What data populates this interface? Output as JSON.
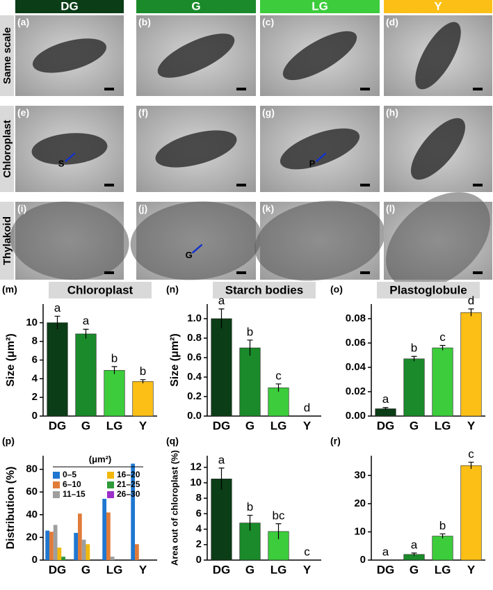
{
  "header": {
    "columns": [
      {
        "label": "DG",
        "color": "#0b3d17"
      },
      {
        "label": "G",
        "color": "#1a8a2a"
      },
      {
        "label": "LG",
        "color": "#3ccc3c"
      },
      {
        "label": "Y",
        "color": "#fbbf16"
      }
    ]
  },
  "rows": [
    "Same scale",
    "Chloroplast",
    "Thylakoid"
  ],
  "micrographs": [
    {
      "panel": "(a)"
    },
    {
      "panel": "(b)"
    },
    {
      "panel": "(c)"
    },
    {
      "panel": "(d)"
    },
    {
      "panel": "(e)",
      "arrow": "S"
    },
    {
      "panel": "(f)"
    },
    {
      "panel": "(g)",
      "arrow": "P"
    },
    {
      "panel": "(h)"
    },
    {
      "panel": "(i)"
    },
    {
      "panel": "(j)",
      "arrow": "G"
    },
    {
      "panel": "(k)"
    },
    {
      "panel": "(l)"
    }
  ],
  "chart_data": [
    {
      "type": "bar",
      "panel": "(m)",
      "title": "Chloroplast",
      "ylabel": "Size (μm²)",
      "categories": [
        "DG",
        "G",
        "LG",
        "Y"
      ],
      "values": [
        10.0,
        8.8,
        4.9,
        3.7
      ],
      "errors": [
        0.7,
        0.5,
        0.4,
        0.2
      ],
      "letters": [
        "a",
        "a",
        "b",
        "b"
      ],
      "colors": [
        "#0b3d17",
        "#1a8a2a",
        "#3ccc3c",
        "#fbbf16"
      ],
      "ylim": [
        0,
        12
      ],
      "yticks": [
        0,
        2,
        4,
        6,
        8,
        10
      ]
    },
    {
      "type": "bar",
      "panel": "(n)",
      "title": "Starch bodies",
      "ylabel": "Size (μm²)",
      "categories": [
        "DG",
        "G",
        "LG",
        "Y"
      ],
      "values": [
        1.0,
        0.7,
        0.29,
        0
      ],
      "errors": [
        0.1,
        0.08,
        0.04,
        0
      ],
      "letters": [
        "a",
        "b",
        "c",
        "d"
      ],
      "colors": [
        "#0b3d17",
        "#1a8a2a",
        "#3ccc3c",
        "#fbbf16"
      ],
      "ylim": [
        0,
        1.15
      ],
      "yticks": [
        {
          "value": 0,
          "label": "0.0"
        },
        0.2,
        0.4,
        0.6,
        0.8,
        {
          "value": 1,
          "label": "1.0"
        }
      ]
    },
    {
      "type": "bar",
      "panel": "(o)",
      "title": "Plastoglobule",
      "categories": [
        "DG",
        "G",
        "LG",
        "Y"
      ],
      "values": [
        0.006,
        0.047,
        0.056,
        0.085
      ],
      "errors": [
        0.001,
        0.002,
        0.002,
        0.003
      ],
      "letters": [
        "a",
        "b",
        "c",
        "d"
      ],
      "colors": [
        "#0b3d17",
        "#1a8a2a",
        "#3ccc3c",
        "#fbbf16"
      ],
      "ylim": [
        0,
        0.092
      ],
      "yticks": [
        {
          "value": 0,
          "label": "0.00"
        },
        {
          "value": 0.02,
          "label": "0.02"
        },
        {
          "value": 0.04,
          "label": "0.04"
        },
        {
          "value": 0.06,
          "label": "0.06"
        },
        {
          "value": 0.08,
          "label": "0.08"
        }
      ]
    },
    {
      "type": "grouped_bar",
      "panel": "(p)",
      "ylabel": "Distribution (%)",
      "legend_title": "(μm²)",
      "categories": [
        "DG",
        "G",
        "LG",
        "Y"
      ],
      "series": [
        {
          "name": "0–5",
          "color": "#1f77d0",
          "values": [
            26,
            24,
            54,
            85
          ]
        },
        {
          "name": "6–10",
          "color": "#e07b39",
          "values": [
            25,
            41,
            42,
            14
          ]
        },
        {
          "name": "11–15",
          "color": "#9e9e9e",
          "values": [
            31,
            18,
            3,
            0
          ]
        },
        {
          "name": "16–20",
          "color": "#f2b90c",
          "values": [
            11,
            14,
            0,
            0
          ]
        },
        {
          "name": "21–25",
          "color": "#2e9a3a",
          "values": [
            3,
            0,
            0,
            0
          ]
        },
        {
          "name": "26–30",
          "color": "#9b2fc9",
          "values": [
            0,
            0,
            0,
            0
          ]
        }
      ],
      "ylim": [
        0,
        92
      ],
      "yticks": [
        0,
        20,
        40,
        60,
        80
      ]
    },
    {
      "type": "bar",
      "panel": "(q)",
      "ylabel": "Area out of chloroplast (%)",
      "categories": [
        "DG",
        "G",
        "LG",
        "Y"
      ],
      "values": [
        10.5,
        4.8,
        3.7,
        0
      ],
      "errors": [
        1.4,
        1.0,
        1.0,
        0
      ],
      "letters": [
        "a",
        "b",
        "bc",
        "c"
      ],
      "colors": [
        "#0b3d17",
        "#1a8a2a",
        "#3ccc3c",
        "#fbbf16"
      ],
      "ylim": [
        0,
        13.5
      ],
      "yticks": [
        0,
        2,
        4,
        6,
        8,
        10,
        12
      ]
    },
    {
      "type": "bar",
      "panel": "(r)",
      "categories": [
        "DG",
        "G",
        "LG",
        "Y"
      ],
      "values": [
        0,
        2.0,
        8.5,
        33.5
      ],
      "errors": [
        0,
        0.5,
        0.8,
        1.2
      ],
      "letters": [
        "a",
        "a",
        "b",
        "c"
      ],
      "colors": [
        "#0b3d17",
        "#1a8a2a",
        "#3ccc3c",
        "#fbbf16"
      ],
      "ylim": [
        0,
        37
      ],
      "yticks": [
        0,
        10,
        20,
        30
      ]
    }
  ]
}
